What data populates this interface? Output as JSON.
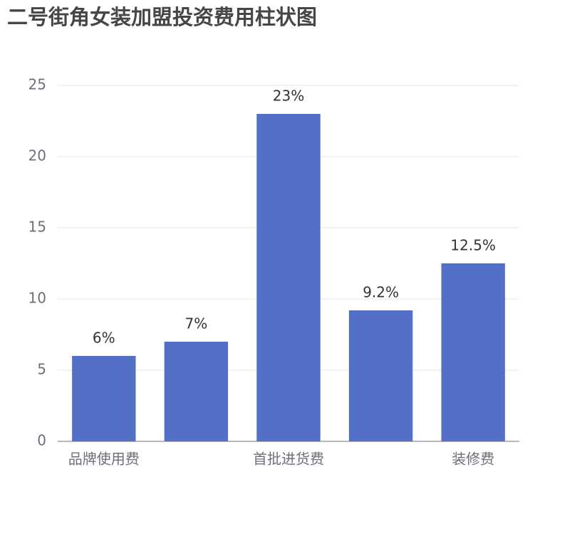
{
  "chart_data": {
    "type": "bar",
    "title": "二号街角女装加盟投资费用柱状图",
    "categories": [
      "品牌使用费",
      null,
      "首批进货费",
      null,
      "装修费"
    ],
    "values": [
      6,
      7,
      23,
      9.2,
      12.5
    ],
    "value_labels": [
      "6%",
      "7%",
      "23%",
      "9.2%",
      "12.5%"
    ],
    "color": "#5470c6",
    "ylim": [
      0,
      25
    ],
    "yticks": [
      0,
      5,
      10,
      15,
      20,
      25
    ],
    "grid": true
  }
}
